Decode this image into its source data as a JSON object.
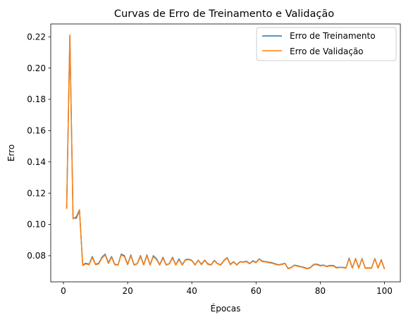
{
  "chart_data": {
    "type": "line",
    "title": "Curvas de Erro de Treinamento e Validação",
    "xlabel": "Épocas",
    "ylabel": "Erro",
    "xlim": [
      -3.95,
      104.95
    ],
    "ylim": [
      0.0633,
      0.2282
    ],
    "xticks": [
      0,
      20,
      40,
      60,
      80,
      100
    ],
    "yticks": [
      0.08,
      0.1,
      0.12,
      0.14,
      0.16,
      0.18,
      0.2,
      0.22
    ],
    "ytick_labels": [
      "0.08",
      "0.10",
      "0.12",
      "0.14",
      "0.16",
      "0.18",
      "0.20",
      "0.22"
    ],
    "grid": false,
    "legend_position": "top-right",
    "x": [
      1,
      2,
      3,
      4,
      5,
      6,
      7,
      8,
      9,
      10,
      11,
      12,
      13,
      14,
      15,
      16,
      17,
      18,
      19,
      20,
      21,
      22,
      23,
      24,
      25,
      26,
      27,
      28,
      29,
      30,
      31,
      32,
      33,
      34,
      35,
      36,
      37,
      38,
      39,
      40,
      41,
      42,
      43,
      44,
      45,
      46,
      47,
      48,
      49,
      50,
      51,
      52,
      53,
      54,
      55,
      56,
      57,
      58,
      59,
      60,
      61,
      62,
      63,
      64,
      65,
      66,
      67,
      68,
      69,
      70,
      71,
      72,
      73,
      74,
      75,
      76,
      77,
      78,
      79,
      80,
      81,
      82,
      83,
      84,
      85,
      86,
      87,
      88,
      89,
      90,
      91,
      92,
      93,
      94,
      95,
      96,
      97,
      98,
      99,
      100
    ],
    "series": [
      {
        "name": "Erro de Treinamento",
        "color": "#1f77b4",
        "values": [
          0.11,
          0.221,
          0.104,
          0.104,
          0.109,
          0.0742,
          0.0752,
          0.0745,
          0.0795,
          0.0745,
          0.0752,
          0.079,
          0.081,
          0.0755,
          0.0795,
          0.0745,
          0.0742,
          0.081,
          0.08,
          0.0745,
          0.0805,
          0.0742,
          0.075,
          0.08,
          0.0742,
          0.0805,
          0.0742,
          0.08,
          0.078,
          0.0742,
          0.079,
          0.0742,
          0.075,
          0.079,
          0.0742,
          0.078,
          0.0742,
          0.0775,
          0.0778,
          0.077,
          0.0742,
          0.0772,
          0.0745,
          0.0772,
          0.0748,
          0.0742,
          0.077,
          0.075,
          0.0742,
          0.077,
          0.0788,
          0.0745,
          0.0762,
          0.0742,
          0.0762,
          0.076,
          0.0765,
          0.075,
          0.0768,
          0.0758,
          0.078,
          0.0765,
          0.0762,
          0.0758,
          0.0755,
          0.0748,
          0.0742,
          0.0746,
          0.0752,
          0.0718,
          0.0726,
          0.074,
          0.0735,
          0.073,
          0.0725,
          0.0718,
          0.0726,
          0.0745,
          0.0745,
          0.0738,
          0.074,
          0.0732,
          0.0738,
          0.0738,
          0.0725,
          0.0726,
          0.0726,
          0.0722,
          0.0785,
          0.0722,
          0.0782,
          0.0722,
          0.0782,
          0.0722,
          0.0722,
          0.0722,
          0.0782,
          0.0722,
          0.0775,
          0.0715
        ]
      },
      {
        "name": "Erro de Validação",
        "color": "#ff7f0e",
        "values": [
          0.11,
          0.221,
          0.1035,
          0.105,
          0.1095,
          0.0738,
          0.0748,
          0.0742,
          0.079,
          0.0742,
          0.0748,
          0.0785,
          0.0805,
          0.075,
          0.079,
          0.0742,
          0.074,
          0.0805,
          0.0795,
          0.0742,
          0.08,
          0.074,
          0.0748,
          0.0795,
          0.074,
          0.08,
          0.074,
          0.0795,
          0.0775,
          0.074,
          0.0785,
          0.074,
          0.0748,
          0.0785,
          0.074,
          0.0775,
          0.074,
          0.0772,
          0.0775,
          0.0768,
          0.074,
          0.077,
          0.0742,
          0.077,
          0.0745,
          0.074,
          0.0768,
          0.0748,
          0.074,
          0.0768,
          0.0785,
          0.0742,
          0.076,
          0.074,
          0.076,
          0.0758,
          0.0762,
          0.0748,
          0.0765,
          0.0755,
          0.0778,
          0.0762,
          0.076,
          0.0755,
          0.0752,
          0.0745,
          0.074,
          0.0744,
          0.075,
          0.0716,
          0.0724,
          0.0738,
          0.0732,
          0.0728,
          0.0722,
          0.0716,
          0.0724,
          0.0742,
          0.0742,
          0.0735,
          0.0738,
          0.073,
          0.0735,
          0.0735,
          0.0722,
          0.0724,
          0.0724,
          0.072,
          0.0782,
          0.072,
          0.078,
          0.072,
          0.078,
          0.072,
          0.072,
          0.072,
          0.078,
          0.072,
          0.0772,
          0.0713
        ]
      }
    ]
  }
}
